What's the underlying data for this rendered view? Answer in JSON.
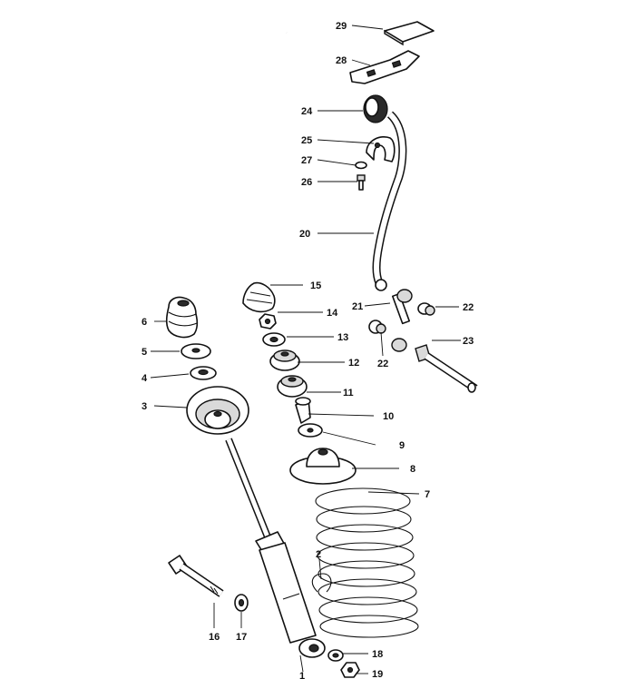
{
  "callouts": [
    {
      "id": "1",
      "label": "1"
    },
    {
      "id": "2",
      "label": "2"
    },
    {
      "id": "3",
      "label": "3"
    },
    {
      "id": "4",
      "label": "4"
    },
    {
      "id": "5",
      "label": "5"
    },
    {
      "id": "6",
      "label": "6"
    },
    {
      "id": "7",
      "label": "7"
    },
    {
      "id": "8",
      "label": "8"
    },
    {
      "id": "9",
      "label": "9"
    },
    {
      "id": "10",
      "label": "10"
    },
    {
      "id": "11",
      "label": "11"
    },
    {
      "id": "12",
      "label": "12"
    },
    {
      "id": "13",
      "label": "13"
    },
    {
      "id": "14",
      "label": "14"
    },
    {
      "id": "15",
      "label": "15"
    },
    {
      "id": "16",
      "label": "16"
    },
    {
      "id": "17",
      "label": "17"
    },
    {
      "id": "18",
      "label": "18"
    },
    {
      "id": "19",
      "label": "19"
    },
    {
      "id": "20",
      "label": "20"
    },
    {
      "id": "21",
      "label": "21"
    },
    {
      "id": "22a",
      "label": "22"
    },
    {
      "id": "22b",
      "label": "22"
    },
    {
      "id": "23",
      "label": "23"
    },
    {
      "id": "24",
      "label": "24"
    },
    {
      "id": "25",
      "label": "25"
    },
    {
      "id": "26",
      "label": "26"
    },
    {
      "id": "27",
      "label": "27"
    },
    {
      "id": "28",
      "label": "28"
    },
    {
      "id": "29",
      "label": "29"
    }
  ]
}
